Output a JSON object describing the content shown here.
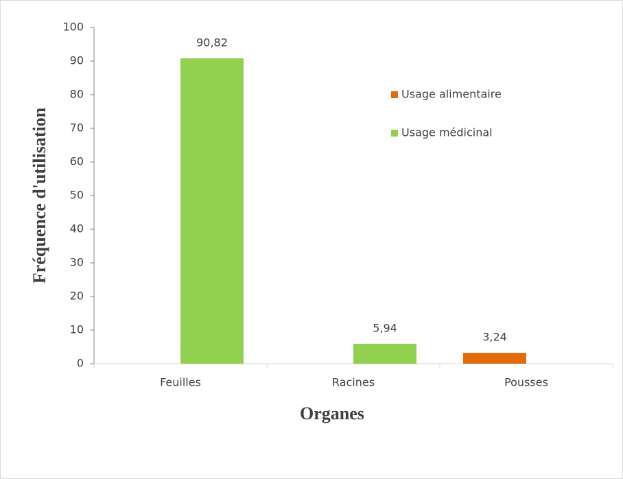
{
  "chart_data": {
    "type": "bar",
    "y_label": "Fréquence d'utilisation",
    "x_label": "Organes",
    "categories": [
      "Feuilles",
      "Racines",
      "Pousses"
    ],
    "series": [
      {
        "name": "Usage alimentaire",
        "color": "#e36c0a",
        "values": [
          null,
          null,
          3.24
        ],
        "value_labels": [
          null,
          null,
          "3,24"
        ]
      },
      {
        "name": "Usage médicinal",
        "color": "#92d050",
        "values": [
          90.82,
          5.94,
          null
        ],
        "value_labels": [
          "90,82",
          "5,94",
          null
        ]
      }
    ],
    "ylim": [
      0,
      100
    ],
    "yticks": [
      0,
      10,
      20,
      30,
      40,
      50,
      60,
      70,
      80,
      90,
      100
    ],
    "grid": false,
    "legend": "upper right"
  }
}
